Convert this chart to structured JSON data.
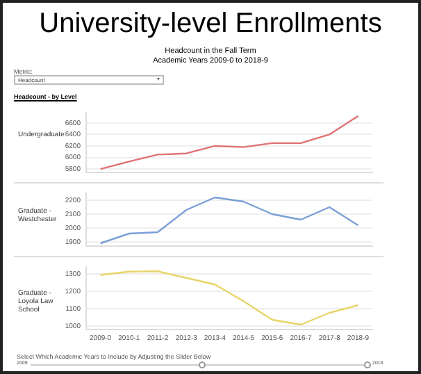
{
  "chart_data": [
    {
      "type": "line",
      "title": "University-level Enrollments",
      "subtitle": "Headcount in the Fall Term\nAcademic Years 2009-0 to 2018-9",
      "annotations": [
        "Metric:",
        "Headcount",
        "Headcount - by Level"
      ],
      "ylabel": "Undergraduate",
      "categories": [
        "2009-0",
        "2010-1",
        "2011-2",
        "2012-3",
        "2013-4",
        "2014-5",
        "2015-6",
        "2016-7",
        "2017-8",
        "2018-9"
      ],
      "series": [
        {
          "color": "#e07272",
          "values": [
            5800,
            5930,
            6050,
            6070,
            6200,
            6180,
            6250,
            6250,
            6400,
            6720
          ]
        }
      ],
      "ylim": [
        5740,
        6780
      ],
      "yticks": [
        5800,
        6000,
        6200,
        6400,
        6600
      ],
      "grid": "y",
      "tick_labels": "y",
      "marker": "none"
    },
    {
      "type": "line",
      "ylabel": "Graduate - Westchester",
      "categories": [
        "2009-0",
        "2010-1",
        "2011-2",
        "2012-3",
        "2013-4",
        "2014-5",
        "2015-6",
        "2016-7",
        "2017-8",
        "2018-9"
      ],
      "series": [
        {
          "color": "#7b9fd6",
          "values": [
            1890,
            1960,
            1970,
            2130,
            2220,
            2190,
            2100,
            2060,
            2150,
            2020
          ]
        }
      ],
      "ylim": [
        1870,
        2250
      ],
      "yticks": [
        1900,
        2000,
        2100,
        2200
      ],
      "grid": "y",
      "tick_labels": "y",
      "marker": "none"
    },
    {
      "type": "line",
      "ylabel": "Graduate - Loyola Law School",
      "annotations": [
        "Select Which Academic Years to Include by Adjusting the Slider Below",
        "2009",
        "2018"
      ],
      "categories": [
        "2009-0",
        "2010-1",
        "2011-2",
        "2012-3",
        "2013-4",
        "2014-5",
        "2015-6",
        "2016-7",
        "2017-8",
        "2018-9"
      ],
      "series": [
        {
          "color": "#e8d468",
          "values": [
            1294,
            1313,
            1315,
            1277,
            1239,
            1143,
            1036,
            1008,
            1076,
            1120
          ]
        }
      ],
      "ylim": [
        980,
        1340
      ],
      "yticks": [
        1000,
        1100,
        1200,
        1300
      ],
      "grid": "y",
      "marker": "none"
    }
  ]
}
